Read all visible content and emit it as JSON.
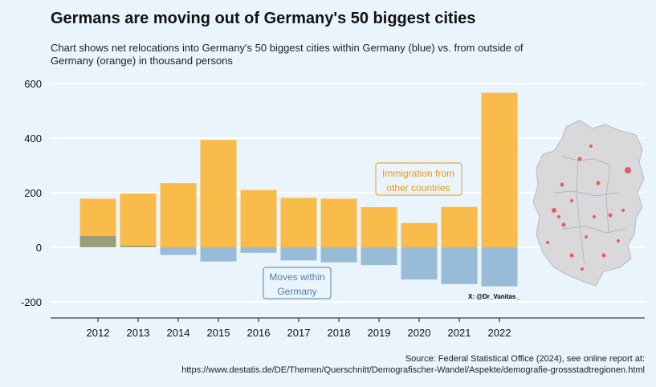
{
  "title": "Germans are moving out of Germany's 50 biggest cities",
  "subtitle": "Chart shows net relocations into Germany's 50 biggest cities within Germany (blue) vs. from outside of Germany (orange) in thousand persons",
  "source_line1": "Source: Federal Statistical Office (2024), see online report at:",
  "source_line2": "https://www.destatis.de/DE/Themen/Querschnitt/Demografischer-Wandel/Aspekte/demografie-grossstadtregionen.html",
  "handle": "X: @Dr_Vanitas_",
  "colors": {
    "immigration": "#f9bb4a",
    "moves": "#98bcd8",
    "overlap": "#9a9f78",
    "annotation_orange": "#e59a16",
    "annotation_blue": "#4f7fa7",
    "background": "#eaf4fc"
  },
  "chart_data": {
    "type": "bar",
    "categories": [
      "2012",
      "2013",
      "2014",
      "2015",
      "2016",
      "2017",
      "2018",
      "2019",
      "2020",
      "2021",
      "2022"
    ],
    "series": [
      {
        "name": "Immigration from other countries",
        "values": [
          178,
          197,
          235,
          393,
          210,
          181,
          178,
          147,
          89,
          148,
          566
        ]
      },
      {
        "name": "Moves within Germany",
        "values": [
          41,
          5,
          -28,
          -52,
          -20,
          -48,
          -55,
          -65,
          -118,
          -135,
          -143
        ]
      }
    ],
    "yticks": [
      -200,
      0,
      200,
      400,
      600
    ],
    "ylim": [
      -270,
      640
    ],
    "grid": "horizontal",
    "annotations": {
      "immigration": [
        "Immigration from",
        "other countries"
      ],
      "moves": [
        "Moves within",
        "Germany"
      ]
    }
  }
}
